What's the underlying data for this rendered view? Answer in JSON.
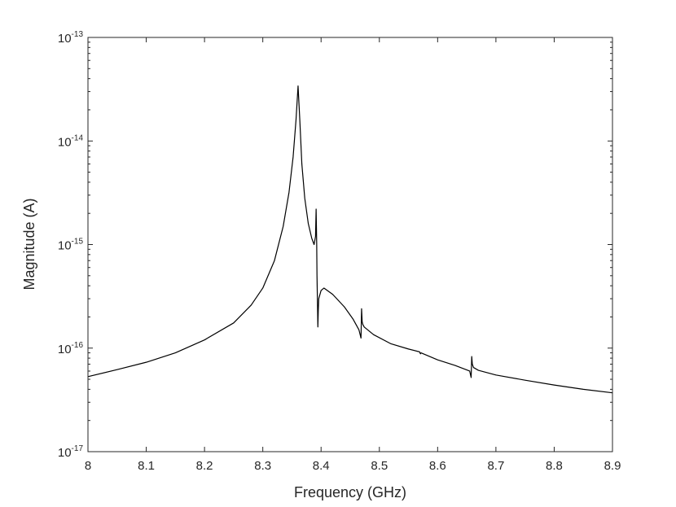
{
  "chart_data": {
    "type": "line",
    "title": "",
    "xlabel": "Frequency (GHz)",
    "ylabel": "Magnitude (A)",
    "xlim": [
      8.0,
      8.9
    ],
    "ylim": [
      1e-17,
      1e-13
    ],
    "yscale": "log",
    "grid": false,
    "legend": "none",
    "x_ticks": [
      "8",
      "8.1",
      "8.2",
      "8.3",
      "8.4",
      "8.5",
      "8.6",
      "8.7",
      "8.8",
      "8.9"
    ],
    "y_ticks": [
      {
        "base": "10",
        "exp": "-17"
      },
      {
        "base": "10",
        "exp": "-16"
      },
      {
        "base": "10",
        "exp": "-15"
      },
      {
        "base": "10",
        "exp": "-14"
      },
      {
        "base": "10",
        "exp": "-13"
      }
    ],
    "series": [
      {
        "color": "#000000",
        "x": [
          8.0,
          8.05,
          8.1,
          8.15,
          8.2,
          8.25,
          8.28,
          8.3,
          8.32,
          8.335,
          8.345,
          8.352,
          8.357,
          8.3605,
          8.3635,
          8.367,
          8.372,
          8.378,
          8.384,
          8.388,
          8.3905,
          8.3915,
          8.3925,
          8.393,
          8.3945,
          8.3952,
          8.396,
          8.4,
          8.405,
          8.42,
          8.44,
          8.455,
          8.465,
          8.4685,
          8.4695,
          8.4705,
          8.4715,
          8.474,
          8.49,
          8.52,
          8.55,
          8.569,
          8.5705,
          8.5715,
          8.6,
          8.63,
          8.655,
          8.6575,
          8.6585,
          8.6595,
          8.6615,
          8.67,
          8.7,
          8.75,
          8.8,
          8.85,
          8.9
        ],
        "values": [
          5.3e-17,
          6.2e-17,
          7.3e-17,
          9e-17,
          1.2e-16,
          1.75e-16,
          2.6e-16,
          3.8e-16,
          7e-16,
          1.5e-15,
          3.2e-15,
          7e-15,
          1.6e-14,
          3.4e-14,
          1.6e-14,
          6e-15,
          2.8e-15,
          1.6e-15,
          1.15e-15,
          1e-15,
          1.2e-15,
          2.2e-15,
          1e-15,
          5e-16,
          1.6e-16,
          2.3e-16,
          3e-16,
          3.6e-16,
          3.8e-16,
          3.3e-16,
          2.5e-16,
          1.9e-16,
          1.5e-16,
          1.25e-16,
          2.4e-16,
          1.8e-16,
          1.7e-16,
          1.6e-16,
          1.35e-16,
          1.1e-16,
          9.8e-17,
          9.2e-17,
          8.8e-17,
          9e-17,
          7.7e-17,
          6.8e-17,
          6e-17,
          5.2e-17,
          8.3e-17,
          7e-17,
          6.5e-17,
          6.1e-17,
          5.5e-17,
          4.9e-17,
          4.4e-17,
          4e-17,
          3.7e-17
        ]
      }
    ]
  }
}
